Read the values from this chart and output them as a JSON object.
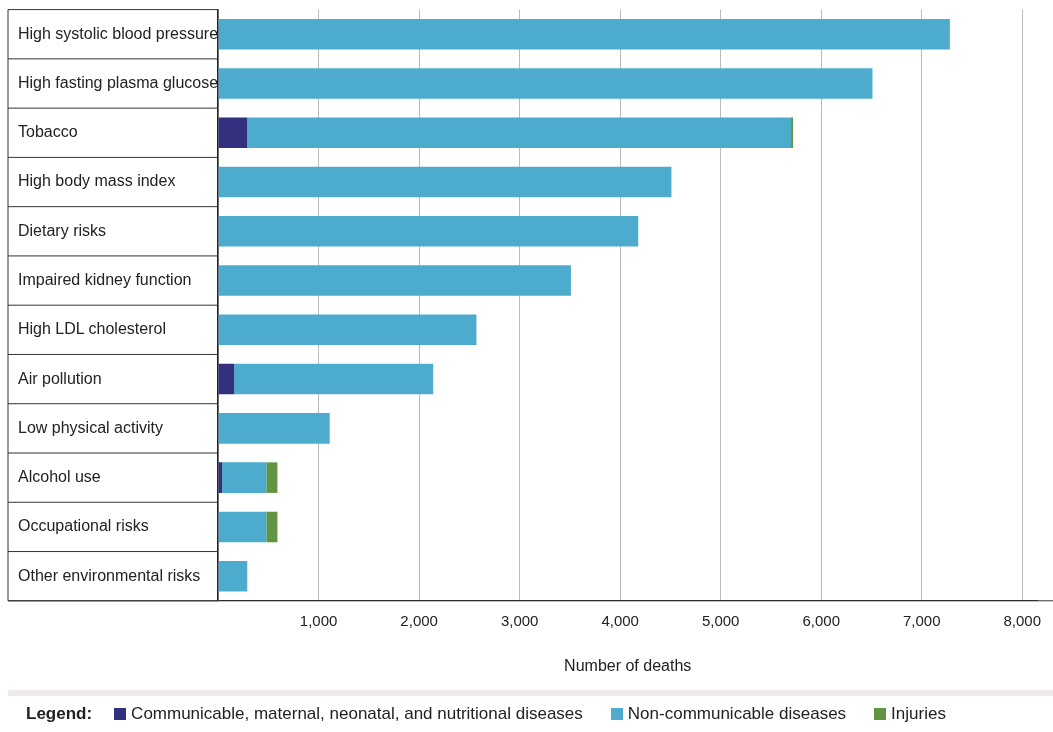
{
  "chart_data": {
    "type": "bar",
    "orientation": "horizontal",
    "stacked": true,
    "xlabel": "Number of deaths",
    "legend_title": "Legend:",
    "categories": [
      "High systolic blood pressure",
      "High fasting plasma glucose",
      "Tobacco",
      "High body mass index",
      "Dietary risks",
      "Impaired kidney function",
      "High LDL cholesterol",
      "Air pollution",
      "Low physical activity",
      "Alcohol use",
      "Occupational risks",
      "Other environmental risks"
    ],
    "series": [
      {
        "name": "Communicable, maternal, neonatal, and nutritional diseases",
        "color": "#33317f",
        "values": [
          0,
          0,
          290,
          0,
          0,
          0,
          0,
          160,
          0,
          40,
          0,
          0
        ]
      },
      {
        "name": "Non-communicable diseases",
        "color": "#4dabcd",
        "values": [
          7280,
          6510,
          5410,
          4510,
          4180,
          3510,
          2570,
          1980,
          1110,
          440,
          480,
          290
        ]
      },
      {
        "name": "Injuries",
        "color": "#62953f",
        "values": [
          0,
          0,
          20,
          0,
          0,
          0,
          0,
          0,
          0,
          110,
          110,
          0
        ]
      }
    ],
    "xlim": [
      0,
      8150
    ],
    "xticks": [
      {
        "value": 0,
        "label": null
      },
      {
        "value": 1000,
        "label": "1,000"
      },
      {
        "value": 2000,
        "label": "2,000"
      },
      {
        "value": 3000,
        "label": "3,000"
      },
      {
        "value": 4000,
        "label": "4,000"
      },
      {
        "value": 5000,
        "label": "5,000"
      },
      {
        "value": 6000,
        "label": "6,000"
      },
      {
        "value": 7000,
        "label": "7,000"
      },
      {
        "value": 8000,
        "label": "8,000"
      }
    ],
    "grid": "x",
    "legend": "bottom"
  }
}
